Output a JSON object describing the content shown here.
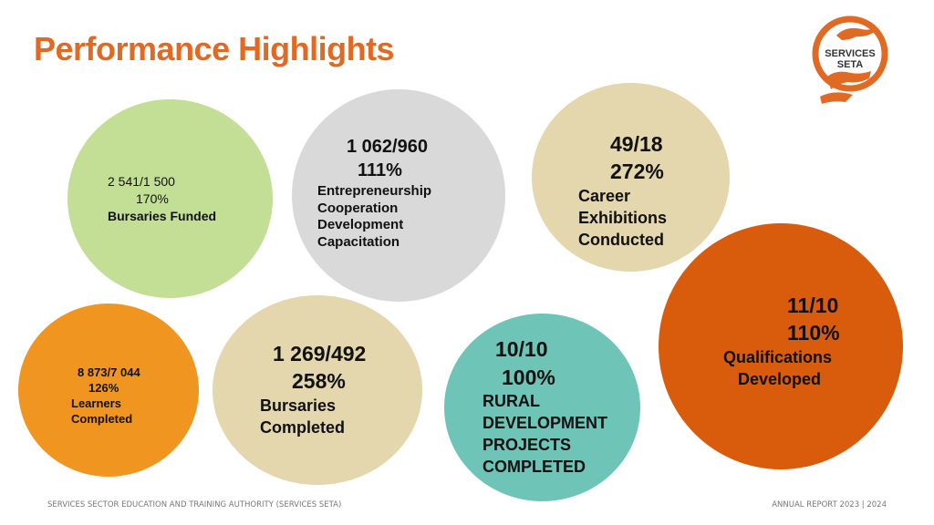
{
  "title": "Performance Highlights",
  "logo": {
    "line1": "SERVICES",
    "line2": "SETA"
  },
  "colors": {
    "accent": "#e06a23"
  },
  "highlights": [
    {
      "ratio": "2 541/1 500",
      "percent": "170%",
      "label": "Bursaries Funded",
      "color": "#c3df96"
    },
    {
      "ratio": "1 062/960",
      "percent": "111%",
      "label_lines": [
        "Entrepreneurship",
        "Cooperation",
        "Development",
        "Capacitation"
      ],
      "color": "#d9d9d9"
    },
    {
      "ratio": "49/18",
      "percent": "272%",
      "label_lines": [
        "Career",
        "Exhibitions",
        "Conducted"
      ],
      "color": "#e4d6ad"
    },
    {
      "ratio": "11/10",
      "percent": "110%",
      "label_lines": [
        "Qualifications",
        "Developed"
      ],
      "color": "#d95b0c"
    },
    {
      "ratio": "8 873/7 044",
      "percent": "126%",
      "label_lines": [
        "Learners",
        "Completed"
      ],
      "color": "#f0951f"
    },
    {
      "ratio": "1 269/492",
      "percent": "258%",
      "label_lines": [
        "Bursaries",
        "Completed"
      ],
      "color": "#e4d6ad"
    },
    {
      "ratio": "10/10",
      "percent": "100%",
      "label_lines": [
        "RURAL",
        "DEVELOPMENT",
        "PROJECTS",
        "COMPLETED"
      ],
      "color": "#6fc4b8"
    }
  ],
  "footer": {
    "left": "SERVICES SECTOR EDUCATION AND TRAINING AUTHORITY (SERVICES SETA)",
    "right": "ANNUAL REPORT 2023 | 2024"
  }
}
